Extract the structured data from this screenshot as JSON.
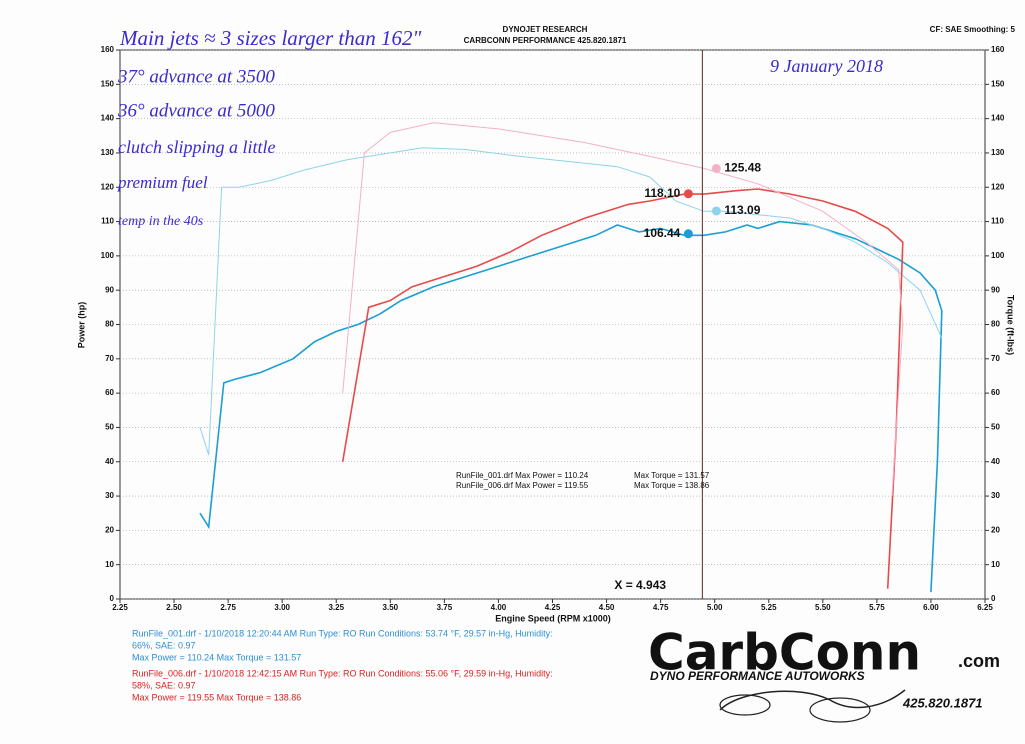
{
  "header": {
    "title": "DYNOJET RESEARCH",
    "subtitle": "CARBCONN PERFORMANCE 425.820.1871",
    "settings": "CF: SAE  Smoothing: 5"
  },
  "chart_data": {
    "type": "line",
    "y_label": "Power (hp)",
    "y2_label": "Torque (ft-lbs)",
    "x_label": "Engine Speed (RPM x1000)",
    "xlim": [
      2.25,
      6.25
    ],
    "xticks": [
      2.25,
      {
        "value": 2.5,
        "label": "2.50"
      },
      2.75,
      {
        "value": 3,
        "label": "3.00"
      },
      3.25,
      {
        "value": 3.5,
        "label": "3.50"
      },
      3.75,
      {
        "value": 4,
        "label": "4.00"
      },
      4.25,
      {
        "value": 4.5,
        "label": "4.50"
      },
      4.75,
      {
        "value": 5,
        "label": "5.00"
      },
      5.25,
      {
        "value": 5.5,
        "label": "5.50"
      },
      5.75,
      {
        "value": 6,
        "label": "6.00"
      },
      6.25
    ],
    "ylim": [
      0,
      160
    ],
    "yticks": [
      0,
      10,
      20,
      30,
      40,
      50,
      60,
      70,
      80,
      90,
      100,
      110,
      120,
      130,
      140,
      150,
      160
    ],
    "y2lim": [
      0,
      160
    ],
    "y2ticks": [
      0,
      10,
      20,
      30,
      40,
      50,
      60,
      70,
      80,
      90,
      100,
      110,
      120,
      130,
      140,
      150,
      160
    ],
    "grid": true,
    "cursor": {
      "x": 4.943,
      "label": "X = 4.943"
    },
    "series": [
      {
        "color": "#1a9fd4",
        "axis": "y",
        "cursor_value": {
          "value": 106.44,
          "label": "106.44"
        },
        "x": [
          2.62,
          2.66,
          2.73,
          2.78,
          2.9,
          3.05,
          3.15,
          3.25,
          3.35,
          3.45,
          3.55,
          3.7,
          3.85,
          4.0,
          4.15,
          4.3,
          4.45,
          4.55,
          4.65,
          4.75,
          4.86,
          4.95,
          5.05,
          5.15,
          5.2,
          5.3,
          5.45,
          5.55,
          5.65,
          5.75,
          5.85,
          5.95,
          6.02,
          6.05,
          6.03,
          6.0
        ],
        "values": [
          25,
          21,
          63,
          64,
          66,
          70,
          75,
          78,
          80,
          83,
          87,
          91,
          94,
          97,
          100,
          103,
          106,
          109,
          107,
          108,
          106,
          106,
          107,
          109,
          108,
          110,
          109,
          107,
          105,
          102,
          99,
          95,
          90,
          84,
          40,
          2
        ]
      },
      {
        "color": "#8fd3ea",
        "axis": "y2",
        "cursor_value": {
          "value": 113.09,
          "label": "113.09"
        },
        "x": [
          2.62,
          2.66,
          2.72,
          2.8,
          2.95,
          3.1,
          3.3,
          3.5,
          3.65,
          3.85,
          4.1,
          4.4,
          4.55,
          4.7,
          4.82,
          4.95,
          5.05,
          5.2,
          5.35,
          5.5,
          5.65,
          5.8,
          5.95,
          6.05
        ],
        "values": [
          50,
          42,
          120,
          120,
          122,
          125,
          128,
          130,
          131.5,
          131,
          129,
          127,
          126,
          123,
          116,
          113,
          113,
          112,
          111,
          108,
          104,
          98,
          90,
          76
        ]
      },
      {
        "color": "#e84a4a",
        "axis": "y",
        "cursor_value": {
          "value": 118.1,
          "label": "118.10"
        },
        "x": [
          3.28,
          3.4,
          3.5,
          3.6,
          3.75,
          3.9,
          4.05,
          4.2,
          4.4,
          4.6,
          4.7,
          4.86,
          4.95,
          5.1,
          5.2,
          5.35,
          5.5,
          5.65,
          5.8,
          5.87,
          5.84,
          5.8
        ],
        "values": [
          40,
          85,
          87,
          91,
          94,
          97,
          101,
          106,
          111,
          115,
          116,
          118,
          118,
          119,
          119.5,
          118,
          116,
          113,
          108,
          104,
          50,
          3
        ]
      },
      {
        "color": "#f5b0c8",
        "axis": "y2",
        "cursor_value": {
          "value": 125.48,
          "label": "125.48"
        },
        "x": [
          3.28,
          3.38,
          3.5,
          3.7,
          4.0,
          4.4,
          4.7,
          4.95,
          5.2,
          5.5,
          5.7,
          5.85,
          5.87,
          5.82
        ],
        "values": [
          60,
          130,
          136,
          138.8,
          137,
          133,
          129,
          125.5,
          121,
          113,
          104,
          96,
          80,
          30
        ]
      }
    ],
    "summary": [
      [
        "RunFile_001.drf Max Power = 110.24",
        "Max Torque = 131.57"
      ],
      [
        "RunFile_006.drf Max Power = 119.55",
        "Max Torque = 138.86"
      ]
    ]
  },
  "annotations": [
    "Main jets ≈ 3 sizes larger than 162\"",
    "37° advance at 3500",
    "36° advance at 5000",
    "clutch slipping a little",
    "premium fuel",
    "temp in the 40s",
    "9 January 2018"
  ],
  "footer": {
    "run_001": [
      "RunFile_001.drf - 1/10/2018 12:20:44 AM  Run Type: RO  Run Conditions: 53.74 °F, 29.57 in-Hg,  Humidity:",
      "66%, SAE: 0.97",
      "Max Power = 110.24  Max Torque = 131.57"
    ],
    "run_006": [
      "RunFile_006.drf - 1/10/2018 12:42:15 AM  Run Type: RO  Run Conditions: 55.06 °F, 29.59 in-Hg,  Humidity:",
      "58%, SAE: 0.97",
      "Max Power = 119.55  Max Torque = 138.86"
    ],
    "logo": "CarbConn",
    "logo_suffix": ".com",
    "tagline": "DYNO PERFORMANCE AUTOWORKS",
    "phone": "425.820.1871"
  }
}
